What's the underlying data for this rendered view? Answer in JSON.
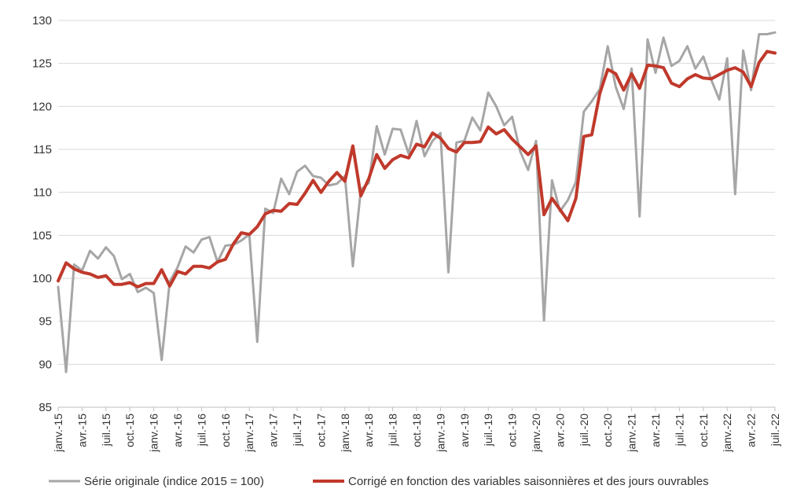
{
  "chart_data": {
    "type": "line",
    "title": "",
    "xlabel": "",
    "ylabel": "",
    "ylim": [
      85,
      130
    ],
    "yticks": [
      85,
      90,
      95,
      100,
      105,
      110,
      115,
      120,
      125,
      130
    ],
    "grid": "horizontal",
    "legend_position": "bottom",
    "x_tick_labels": [
      "janv.-15",
      "avr.-15",
      "juil.-15",
      "oct.-15",
      "janv.-16",
      "avr.-16",
      "juil.-16",
      "oct.-16",
      "janv.-17",
      "avr.-17",
      "juil.-17",
      "oct.-17",
      "janv.-18",
      "avr.-18",
      "juil.-18",
      "oct.-18",
      "janv.-19",
      "avr.-19",
      "juil.-19",
      "oct.-19",
      "janv.-20",
      "avr.-20",
      "juil.-20",
      "oct.-20",
      "janv.-21",
      "avr.-21",
      "juil.-21",
      "oct.-21",
      "janv.-22",
      "avr.-22",
      "juil.-22"
    ],
    "series": [
      {
        "name": "Série originale (indice 2015 = 100)",
        "color": "#a6a6a6",
        "values": [
          99.0,
          89.1,
          101.6,
          100.9,
          103.2,
          102.3,
          103.6,
          102.6,
          99.9,
          100.5,
          98.4,
          98.9,
          98.3,
          90.5,
          99.6,
          101.3,
          103.7,
          103.0,
          104.5,
          104.8,
          101.9,
          103.8,
          103.9,
          104.4,
          105.1,
          92.6,
          108.1,
          107.6,
          111.6,
          109.8,
          112.4,
          113.1,
          111.9,
          111.7,
          110.8,
          111.0,
          111.9,
          101.4,
          110.3,
          111.1,
          117.7,
          114.4,
          117.4,
          117.3,
          114.5,
          118.3,
          114.2,
          116.0,
          116.9,
          100.7,
          115.8,
          116.0,
          118.7,
          117.2,
          121.6,
          120.0,
          117.8,
          118.8,
          114.8,
          112.6,
          116.0,
          95.1,
          111.4,
          107.8,
          109.1,
          111.2,
          119.4,
          120.6,
          122.0,
          127.0,
          122.3,
          119.7,
          124.4,
          107.2,
          127.8,
          123.9,
          128.0,
          124.7,
          125.3,
          127.0,
          124.4,
          125.8,
          123.1,
          120.8,
          125.6,
          109.8,
          126.5,
          121.9,
          128.4,
          128.4,
          128.6
        ]
      },
      {
        "name": "Corrigé en fonction des variables saisonnières et des jours ouvrables",
        "color": "#c0392b",
        "values": [
          99.7,
          101.8,
          101.1,
          100.7,
          100.5,
          100.1,
          100.3,
          99.3,
          99.3,
          99.5,
          99.0,
          99.4,
          99.4,
          101.0,
          99.1,
          100.8,
          100.5,
          101.4,
          101.4,
          101.2,
          101.9,
          102.2,
          104.0,
          105.3,
          105.1,
          106.0,
          107.5,
          107.9,
          107.8,
          108.7,
          108.6,
          109.9,
          111.4,
          110.0,
          111.3,
          112.3,
          111.3,
          115.4,
          109.6,
          111.6,
          114.4,
          112.8,
          113.8,
          114.3,
          114.0,
          115.6,
          115.3,
          116.9,
          116.3,
          115.1,
          114.7,
          115.8,
          115.8,
          115.9,
          117.6,
          116.8,
          117.3,
          116.2,
          115.3,
          114.4,
          115.4,
          107.4,
          109.3,
          108.0,
          106.7,
          109.3,
          116.5,
          116.7,
          121.5,
          124.3,
          123.8,
          121.9,
          123.8,
          122.1,
          124.8,
          124.7,
          124.5,
          122.7,
          122.3,
          123.2,
          123.7,
          123.3,
          123.2,
          123.7,
          124.2,
          124.5,
          124.0,
          122.3,
          125.1,
          126.4,
          126.2
        ]
      }
    ]
  }
}
